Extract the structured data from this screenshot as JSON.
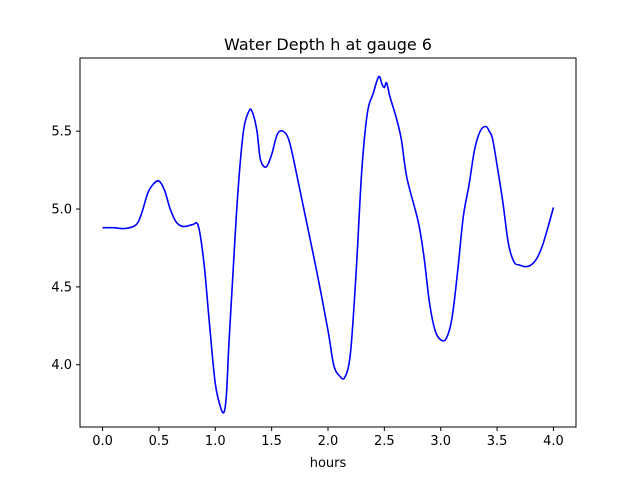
{
  "chart_data": {
    "type": "line",
    "title": "Water Depth h at gauge 6",
    "xlabel": "hours",
    "ylabel": "",
    "xlim": [
      -0.2,
      4.2
    ],
    "ylim": [
      3.6,
      5.97
    ],
    "xticks": [
      0.0,
      0.5,
      1.0,
      1.5,
      2.0,
      2.5,
      3.0,
      3.5,
      4.0
    ],
    "xtick_labels": [
      "0.0",
      "0.5",
      "1.0",
      "1.5",
      "2.0",
      "2.5",
      "3.0",
      "3.5",
      "4.0"
    ],
    "yticks": [
      4.0,
      4.5,
      5.0,
      5.5
    ],
    "ytick_labels": [
      "4.0",
      "4.5",
      "5.0",
      "5.5"
    ],
    "grid": false,
    "series": [
      {
        "color": "#0000ff",
        "x": [
          0.0,
          0.1,
          0.2,
          0.3,
          0.35,
          0.4,
          0.45,
          0.5,
          0.55,
          0.6,
          0.65,
          0.7,
          0.75,
          0.8,
          0.85,
          0.9,
          0.95,
          1.0,
          1.05,
          1.08,
          1.1,
          1.12,
          1.15,
          1.2,
          1.25,
          1.3,
          1.33,
          1.37,
          1.4,
          1.45,
          1.5,
          1.55,
          1.6,
          1.65,
          1.7,
          1.8,
          1.9,
          2.0,
          2.05,
          2.1,
          2.15,
          2.2,
          2.25,
          2.3,
          2.35,
          2.4,
          2.45,
          2.48,
          2.5,
          2.52,
          2.55,
          2.6,
          2.65,
          2.7,
          2.8,
          2.85,
          2.9,
          2.95,
          3.0,
          3.05,
          3.1,
          3.15,
          3.2,
          3.25,
          3.3,
          3.35,
          3.4,
          3.43,
          3.46,
          3.5,
          3.55,
          3.6,
          3.65,
          3.7,
          3.75,
          3.8,
          3.85,
          3.9,
          3.95,
          4.0
        ],
        "y": [
          4.88,
          4.88,
          4.875,
          4.9,
          4.98,
          5.1,
          5.16,
          5.18,
          5.12,
          5.0,
          4.92,
          4.89,
          4.89,
          4.9,
          4.89,
          4.65,
          4.25,
          3.88,
          3.72,
          3.7,
          3.82,
          4.12,
          4.5,
          5.1,
          5.5,
          5.63,
          5.62,
          5.5,
          5.32,
          5.27,
          5.35,
          5.48,
          5.5,
          5.45,
          5.3,
          4.95,
          4.6,
          4.22,
          4.0,
          3.93,
          3.92,
          4.08,
          4.6,
          5.25,
          5.62,
          5.74,
          5.85,
          5.8,
          5.78,
          5.81,
          5.72,
          5.6,
          5.45,
          5.2,
          4.92,
          4.7,
          4.4,
          4.22,
          4.16,
          4.17,
          4.3,
          4.6,
          4.95,
          5.15,
          5.38,
          5.5,
          5.53,
          5.5,
          5.45,
          5.28,
          5.05,
          4.78,
          4.66,
          4.64,
          4.63,
          4.64,
          4.68,
          4.76,
          4.88,
          5.01
        ]
      }
    ]
  }
}
